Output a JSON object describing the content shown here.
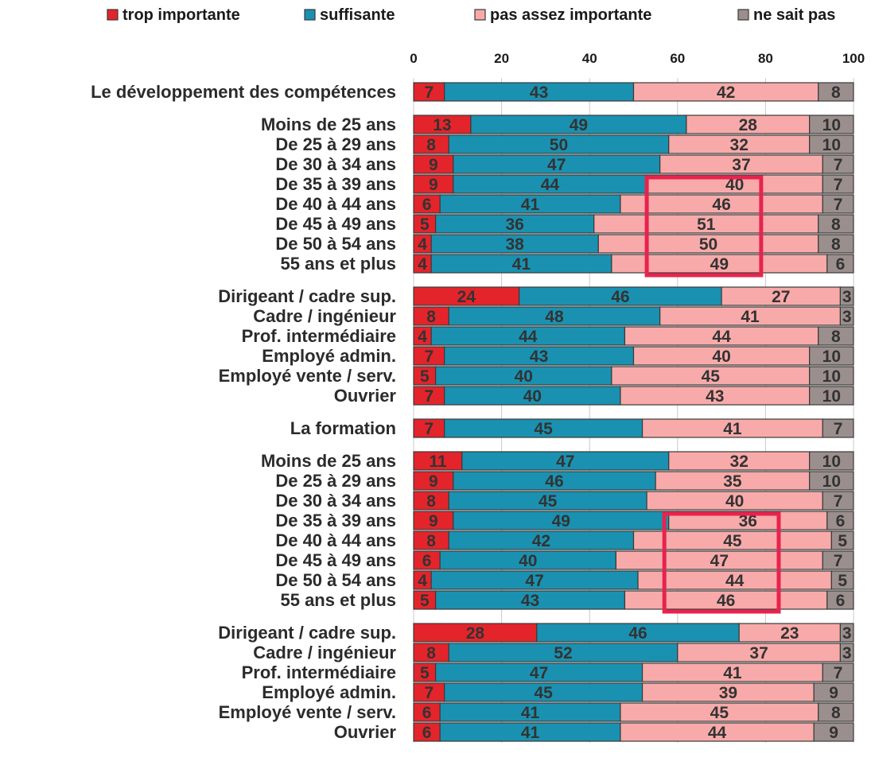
{
  "chart_data": {
    "type": "bar",
    "orientation": "horizontal",
    "stacked": true,
    "xlim": [
      0,
      100
    ],
    "xticks": [
      "0",
      "20",
      "40",
      "60",
      "80",
      "100"
    ],
    "grid": true,
    "legend_position": "top",
    "series": [
      {
        "name": "trop importante",
        "color": "#e3242b"
      },
      {
        "name": "suffisante",
        "color": "#1a91b0"
      },
      {
        "name": "pas assez importante",
        "color": "#f7aaa9"
      },
      {
        "name": "ne sait pas",
        "color": "#9b8f8d"
      }
    ],
    "groups": [
      {
        "rows": [
          {
            "label": "Le développement des compétences",
            "values": [
              7,
              43,
              42,
              8
            ]
          }
        ]
      },
      {
        "rows": [
          {
            "label": "Moins de 25 ans",
            "values": [
              13,
              49,
              28,
              10
            ]
          },
          {
            "label": "De 25 à 29 ans",
            "values": [
              8,
              50,
              32,
              10
            ]
          },
          {
            "label": "De 30 à 34 ans",
            "values": [
              9,
              47,
              37,
              7
            ]
          },
          {
            "label": "De 35 à 39 ans",
            "values": [
              9,
              44,
              40,
              7
            ]
          },
          {
            "label": "De 40 à 44 ans",
            "values": [
              6,
              41,
              46,
              7
            ]
          },
          {
            "label": "De 45 à 49 ans",
            "values": [
              5,
              36,
              51,
              8
            ]
          },
          {
            "label": "De 50 à 54 ans",
            "values": [
              4,
              38,
              50,
              8
            ]
          },
          {
            "label": "55 ans et plus",
            "values": [
              4,
              41,
              49,
              6
            ]
          }
        ]
      },
      {
        "rows": [
          {
            "label": "Dirigeant / cadre sup.",
            "values": [
              24,
              46,
              27,
              3
            ]
          },
          {
            "label": "Cadre / ingénieur",
            "values": [
              8,
              48,
              41,
              3
            ]
          },
          {
            "label": "Prof. intermédiaire",
            "values": [
              4,
              44,
              44,
              8
            ]
          },
          {
            "label": "Employé admin.",
            "values": [
              7,
              43,
              40,
              10
            ]
          },
          {
            "label": "Employé vente / serv.",
            "values": [
              5,
              40,
              45,
              10
            ]
          },
          {
            "label": "Ouvrier",
            "values": [
              7,
              40,
              43,
              10
            ]
          }
        ]
      },
      {
        "rows": [
          {
            "label": "La formation",
            "values": [
              7,
              45,
              41,
              7
            ]
          }
        ]
      },
      {
        "rows": [
          {
            "label": "Moins de 25 ans",
            "values": [
              11,
              47,
              32,
              10
            ]
          },
          {
            "label": "De 25 à 29 ans",
            "values": [
              9,
              46,
              35,
              10
            ]
          },
          {
            "label": "De 30 à 34 ans",
            "values": [
              8,
              45,
              40,
              7
            ]
          },
          {
            "label": "De 35 à 39 ans",
            "values": [
              9,
              49,
              36,
              6
            ]
          },
          {
            "label": "De 40 à 44 ans",
            "values": [
              8,
              42,
              45,
              5
            ]
          },
          {
            "label": "De 45 à 49 ans",
            "values": [
              6,
              40,
              47,
              7
            ]
          },
          {
            "label": "De 50 à 54 ans",
            "values": [
              4,
              47,
              44,
              5
            ]
          },
          {
            "label": "55 ans et plus",
            "values": [
              5,
              43,
              46,
              6
            ]
          }
        ]
      },
      {
        "rows": [
          {
            "label": "Dirigeant / cadre sup.",
            "values": [
              28,
              46,
              23,
              3
            ]
          },
          {
            "label": "Cadre / ingénieur",
            "values": [
              8,
              52,
              37,
              3
            ]
          },
          {
            "label": "Prof. intermédiaire",
            "values": [
              5,
              47,
              41,
              7
            ]
          },
          {
            "label": "Employé admin.",
            "values": [
              7,
              45,
              39,
              9
            ]
          },
          {
            "label": "Employé vente / serv.",
            "values": [
              6,
              41,
              45,
              8
            ]
          },
          {
            "label": "Ouvrier",
            "values": [
              6,
              41,
              44,
              9
            ]
          }
        ]
      }
    ],
    "highlights": [
      {
        "color": "#e8234d",
        "group": 1,
        "from_row": 3,
        "to_row": 7,
        "x_range": [
          53,
          79
        ]
      },
      {
        "color": "#e8234d",
        "group": 4,
        "from_row": 3,
        "to_row": 7,
        "x_range": [
          57,
          83
        ]
      }
    ]
  }
}
